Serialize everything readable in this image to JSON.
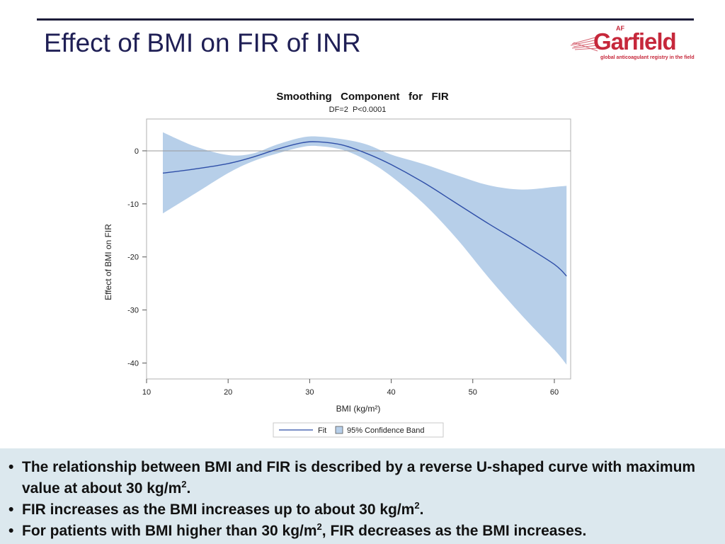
{
  "slide": {
    "title": "Effect of BMI on FIR of INR",
    "logo": {
      "brand": "Garfield",
      "af": "AF",
      "tagline": "global anticoagulant registry in the field"
    }
  },
  "chart_data": {
    "type": "line",
    "title": "Smoothing   Component   for   FIR",
    "subtitle": "DF=2  P<0.0001",
    "xlabel": "BMI (kg/m²)",
    "ylabel": "Effect of BMI on FIR",
    "xlim": [
      10,
      62
    ],
    "ylim": [
      -43,
      6
    ],
    "xticks": [
      10,
      20,
      30,
      40,
      50,
      60
    ],
    "yticks": [
      0,
      -10,
      -20,
      -30,
      -40
    ],
    "reference_line": 0,
    "grid": false,
    "legend_position": "bottom-center",
    "colors": {
      "fit": "#2f4fa8",
      "band": "#b7cfe9",
      "reference": "#9a9a9a"
    },
    "series": [
      {
        "name": "Fit",
        "x": [
          12,
          16,
          20,
          23,
          26,
          29,
          31,
          34,
          37,
          40,
          44,
          48,
          52,
          56,
          60,
          61.5
        ],
        "values": [
          -4.2,
          -3.4,
          -2.4,
          -1.2,
          0.3,
          1.5,
          1.7,
          1.1,
          -0.5,
          -2.6,
          -6.0,
          -9.9,
          -13.8,
          -17.5,
          -21.4,
          -23.6
        ]
      },
      {
        "name": "95% Confidence Band",
        "x": [
          12,
          16,
          20,
          23,
          26,
          29,
          31,
          34,
          37,
          40,
          44,
          48,
          52,
          56,
          60,
          61.5
        ],
        "lower": [
          -11.8,
          -8.0,
          -4.2,
          -2.0,
          -0.5,
          0.7,
          0.9,
          0.2,
          -1.8,
          -4.8,
          -10.0,
          -16.5,
          -24.0,
          -31.0,
          -37.5,
          -40.3
        ],
        "upper": [
          3.5,
          0.8,
          -0.8,
          -0.5,
          1.2,
          2.5,
          2.7,
          2.2,
          1.2,
          -0.7,
          -2.5,
          -4.6,
          -6.5,
          -7.3,
          -6.8,
          -6.6
        ]
      }
    ]
  },
  "notes": [
    {
      "text": "The relationship between BMI and FIR is described by a reverse U-shaped curve with maximum value at about 30 kg/m",
      "sup": "2",
      "tail": "."
    },
    {
      "text": "FIR increases as the BMI increases up to about 30 kg/m",
      "sup": "2",
      "tail": "."
    },
    {
      "text": "For patients with BMI higher than 30 kg/m",
      "sup": "2",
      "tail": ", FIR decreases as the BMI increases."
    }
  ],
  "bullet": "•"
}
